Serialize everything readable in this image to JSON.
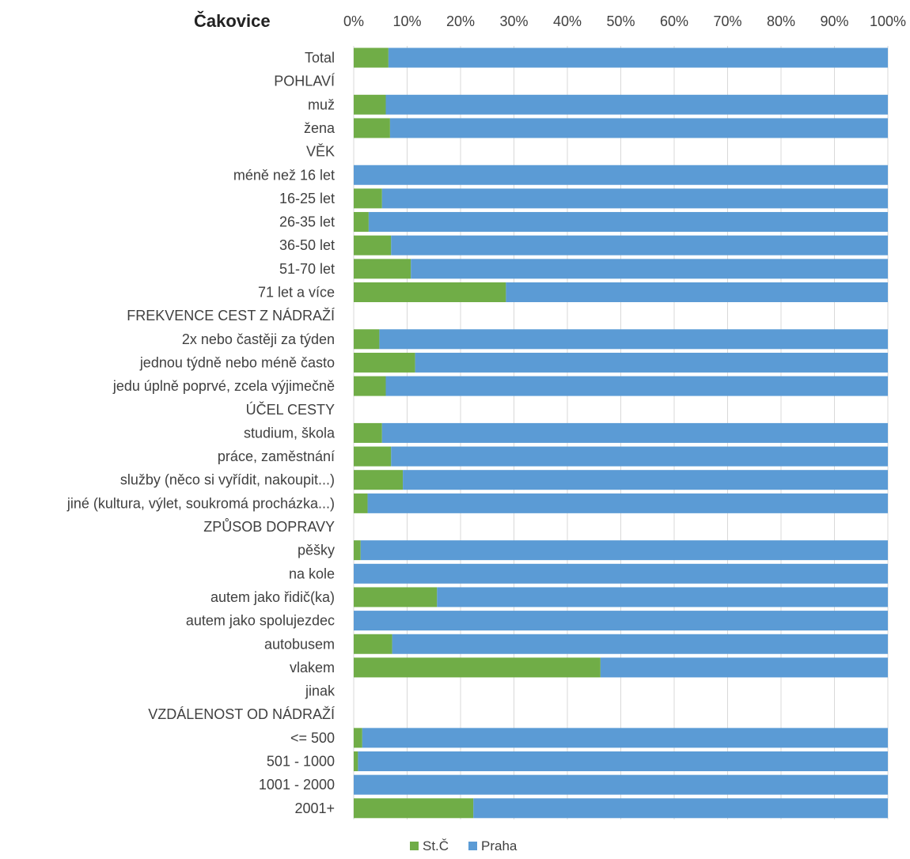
{
  "chart_data": {
    "type": "bar",
    "orientation": "horizontal",
    "stacked": "percent",
    "title": "Čakovice",
    "categories": [
      "Total",
      "POHLAVÍ",
      "muž",
      "žena",
      "VĚK",
      "méně než 16 let",
      "16-25 let",
      "26-35 let",
      "36-50 let",
      "51-70 let",
      "71 let a více",
      "FREKVENCE CEST Z NÁDRAŽÍ",
      "2x nebo častěji za týden",
      "jednou týdně nebo méně často",
      "jedu úplně poprvé, zcela výjimečně",
      "ÚČEL CESTY",
      "studium, škola",
      "práce, zaměstnání",
      "služby (něco si vyřídit, nakoupit...)",
      "jiné (kultura, výlet, soukromá procházka...)",
      "ZPŮSOB DOPRAVY",
      "pěšky",
      "na kole",
      "autem jako řidič(ka)",
      "autem jako spolujezdec",
      "autobusem",
      "vlakem",
      "jinak",
      "VZDÁLENOST OD NÁDRAŽÍ",
      "<= 500",
      "501 - 1000",
      "1001 - 2000",
      "2001+"
    ],
    "series": [
      {
        "name": "St.Č",
        "color": "#70ad47",
        "values": [
          6.5,
          null,
          6,
          6.8,
          null,
          0,
          5.3,
          2.8,
          7,
          10.7,
          28.5,
          null,
          4.8,
          11.5,
          6,
          null,
          5.3,
          7,
          9.2,
          2.6,
          null,
          1.3,
          0,
          15.6,
          0,
          7.2,
          46.2,
          null,
          null,
          1.6,
          0.8,
          0,
          22.4
        ]
      },
      {
        "name": "Praha",
        "color": "#5b9bd5",
        "values": [
          93.5,
          null,
          94,
          93.2,
          null,
          100,
          94.7,
          97.2,
          93,
          89.3,
          71.5,
          null,
          95.2,
          88.5,
          94,
          null,
          94.7,
          93,
          90.8,
          97.4,
          null,
          98.7,
          100,
          84.4,
          100,
          92.8,
          53.8,
          null,
          null,
          98.4,
          99.2,
          100,
          77.6
        ]
      }
    ],
    "x_ticks": [
      "0%",
      "10%",
      "20%",
      "30%",
      "40%",
      "50%",
      "60%",
      "70%",
      "80%",
      "90%",
      "100%"
    ],
    "xlim": [
      0,
      100
    ],
    "x_axis_position": "top",
    "grid": true,
    "legend": "bottom"
  }
}
